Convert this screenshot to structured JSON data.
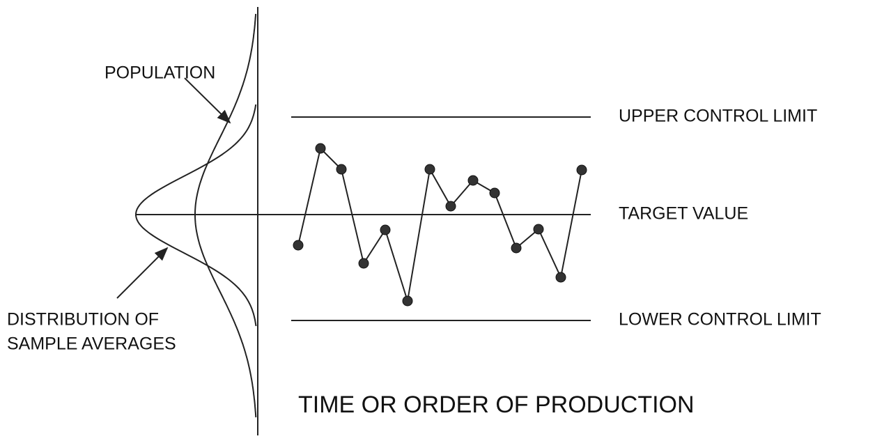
{
  "labels": {
    "population": "POPULATION",
    "distribution_line1": "DISTRIBUTION OF",
    "distribution_line2": "SAMPLE AVERAGES",
    "upper": "UPPER CONTROL LIMIT",
    "target": "TARGET VALUE",
    "lower": "LOWER CONTROL LIMIT",
    "x_axis": "TIME OR ORDER OF PRODUCTION"
  }
}
